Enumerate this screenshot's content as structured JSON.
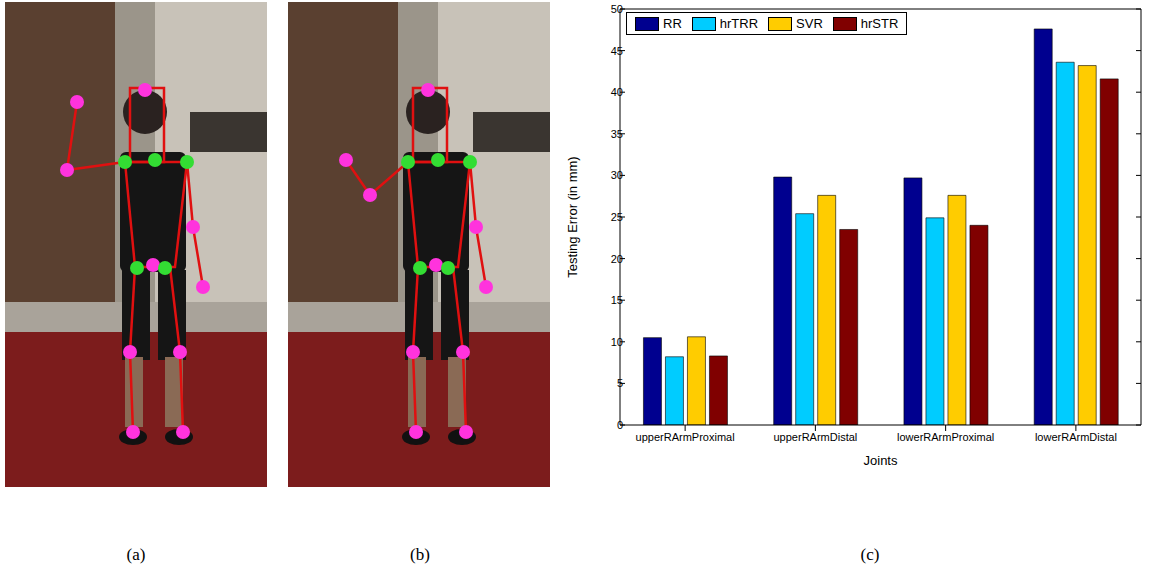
{
  "panel_labels": [
    "(a)",
    "(b)",
    "(c)"
  ],
  "chart_data": {
    "type": "bar",
    "categories": [
      "upperRArmProximal",
      "upperRArmDistal",
      "lowerRArmProximal",
      "lowerRArmDistal"
    ],
    "series": [
      {
        "name": "RR",
        "color": "#00008f",
        "values": [
          10.5,
          29.8,
          29.7,
          47.6
        ]
      },
      {
        "name": "hrTRR",
        "color": "#00ccff",
        "values": [
          8.2,
          25.4,
          24.9,
          43.6
        ]
      },
      {
        "name": "SVR",
        "color": "#ffcc00",
        "values": [
          10.6,
          27.6,
          27.6,
          43.2
        ]
      },
      {
        "name": "hrSTR",
        "color": "#800000",
        "values": [
          8.3,
          23.5,
          24.0,
          41.6
        ]
      }
    ],
    "x_label": "Joints",
    "y_label": "Testing Error (in mm)",
    "ylim": [
      0,
      50
    ],
    "yticks": [
      0,
      5,
      10,
      15,
      20,
      25,
      30,
      35,
      40,
      45,
      50
    ],
    "legend": "upper left",
    "grid": false
  }
}
